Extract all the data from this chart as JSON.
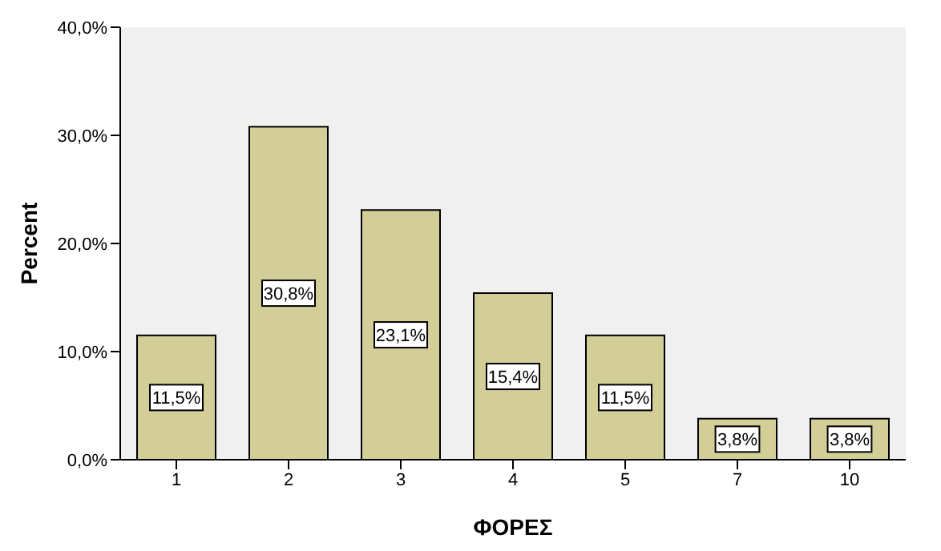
{
  "chart_data": {
    "type": "bar",
    "xlabel": "ΦΟΡΕΣ",
    "ylabel": "Percent",
    "categories": [
      "1",
      "2",
      "3",
      "4",
      "5",
      "7",
      "10"
    ],
    "values": [
      11.5,
      30.8,
      23.1,
      15.4,
      11.5,
      3.8,
      3.8
    ],
    "value_labels": [
      "11,5%",
      "30,8%",
      "23,1%",
      "15,4%",
      "11,5%",
      "3,8%",
      "3,8%"
    ],
    "color": "#d3ce97",
    "ylim": [
      0,
      40
    ],
    "yticks": [
      {
        "value": 0,
        "label": "0,0%"
      },
      {
        "value": 10,
        "label": "10,0%"
      },
      {
        "value": 20,
        "label": "20,0%"
      },
      {
        "value": 30,
        "label": "30,0%"
      },
      {
        "value": 40,
        "label": "40,0%"
      }
    ],
    "grid": false
  }
}
